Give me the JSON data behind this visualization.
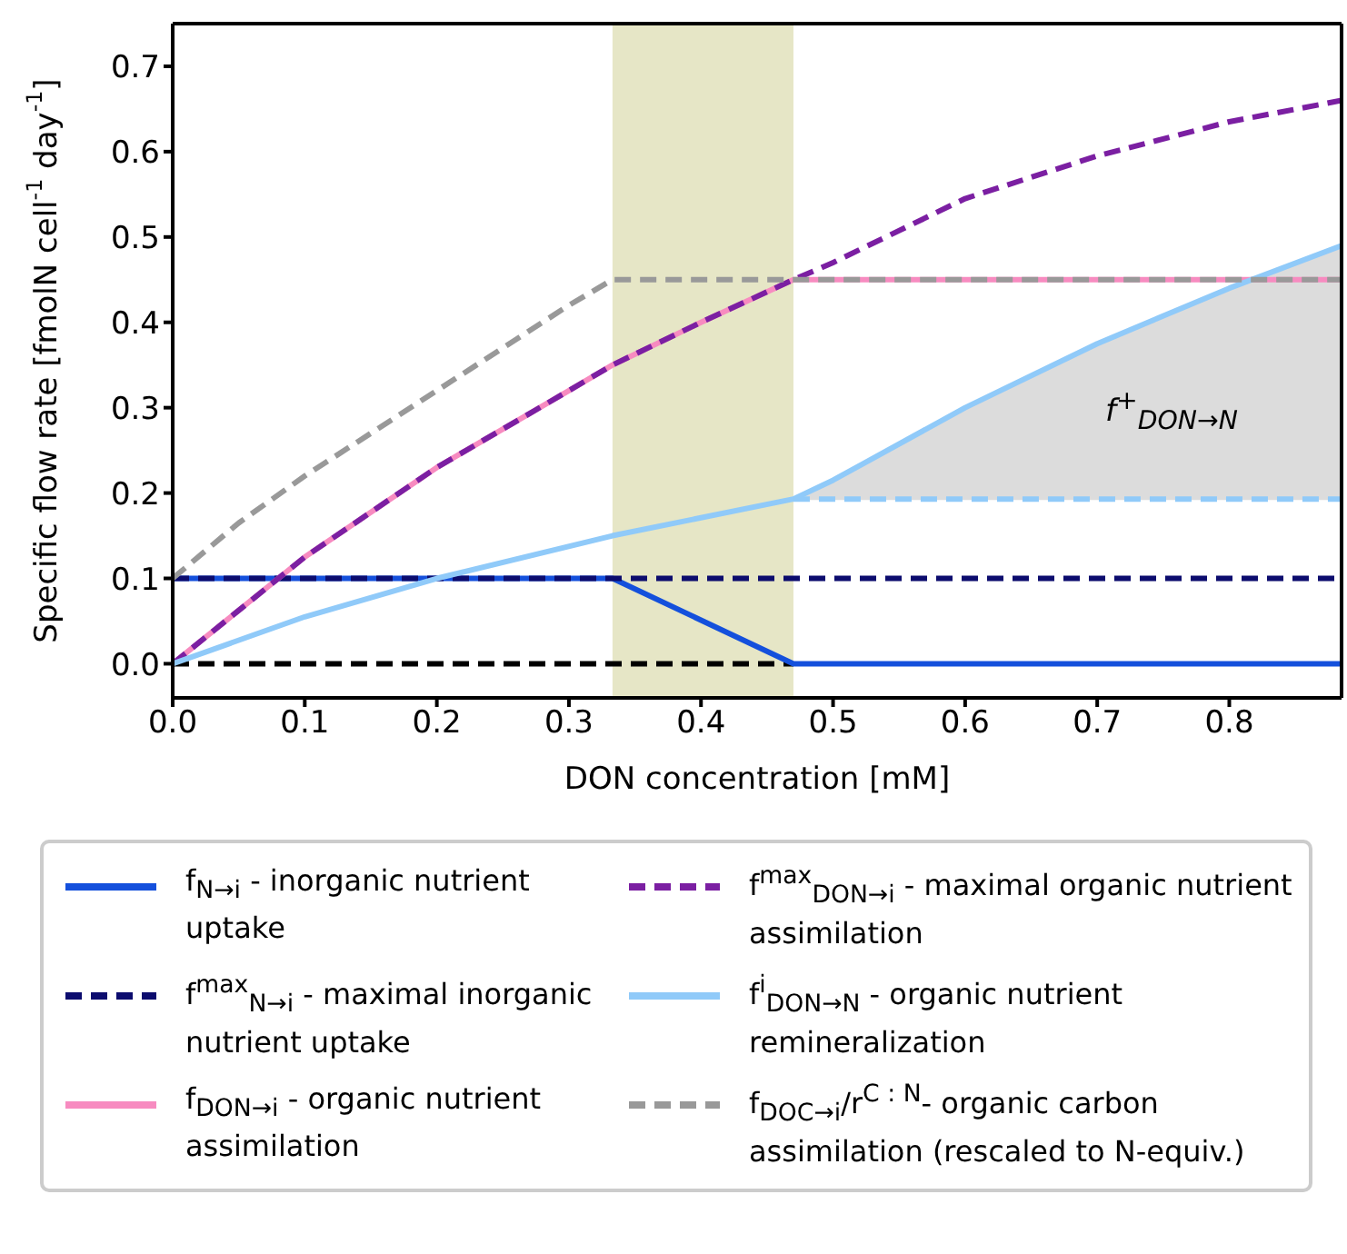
{
  "chart_data": {
    "type": "line",
    "xlabel": "DON concentration [mM]",
    "ylabel": "Specific flow rate [fmolN cell$^{-1}$ day$^{-1}$]",
    "xlim": [
      0,
      0.885
    ],
    "ylim": [
      -0.04,
      0.75
    ],
    "xticks": [
      {
        "value": 0,
        "label": "0.0"
      },
      {
        "value": 0.1,
        "label": "0.1"
      },
      {
        "value": 0.2,
        "label": "0.2"
      },
      {
        "value": 0.3,
        "label": "0.3"
      },
      {
        "value": 0.4,
        "label": "0.4"
      },
      {
        "value": 0.5,
        "label": "0.5"
      },
      {
        "value": 0.6,
        "label": "0.6"
      },
      {
        "value": 0.7,
        "label": "0.7"
      },
      {
        "value": 0.8,
        "label": "0.8"
      }
    ],
    "yticks": [
      {
        "value": 0,
        "label": "0.0"
      },
      {
        "value": 0.1,
        "label": "0.1"
      },
      {
        "value": 0.2,
        "label": "0.2"
      },
      {
        "value": 0.3,
        "label": "0.3"
      },
      {
        "value": 0.4,
        "label": "0.4"
      },
      {
        "value": 0.5,
        "label": "0.5"
      },
      {
        "value": 0.6,
        "label": "0.6"
      },
      {
        "value": 0.7,
        "label": "0.7"
      }
    ],
    "grid": false,
    "legend": "bottom",
    "marker": "none",
    "bands": [
      {
        "axis": "x",
        "from": 0.333,
        "to": 0.47,
        "color": "#e6e6c6"
      }
    ],
    "annotations": [
      "f$^{+}$$_{DON→N}$"
    ],
    "series": [
      {
        "color": "#000000",
        "line_style": "dashed",
        "x": [
          0,
          0.47
        ],
        "values": [
          0,
          0
        ]
      },
      {
        "name": "f$_{N→i}$ - inorganic nutrient uptake",
        "color": "#1450dc",
        "line_style": "solid",
        "x": [
          0,
          0.333,
          0.47,
          0.885
        ],
        "values": [
          0.1,
          0.1,
          0,
          0
        ]
      },
      {
        "name": "f$^{max}$$_{N→i}$ - maximal inorganic nutrient uptake",
        "color": "#0c0c6e",
        "line_style": "dashed",
        "x": [
          0,
          0.885
        ],
        "values": [
          0.1,
          0.1
        ]
      },
      {
        "name": "f$_{DON→i}$ - organic nutrient assimilation",
        "color": "#f78bc0",
        "line_style": "solid",
        "x": [
          0,
          0.1,
          0.2,
          0.3,
          0.333,
          0.4,
          0.47,
          0.885
        ],
        "values": [
          0,
          0.125,
          0.23,
          0.32,
          0.35,
          0.4,
          0.45,
          0.45
        ]
      },
      {
        "name": "f$^{max}$$_{DON→i}$ - maximal organic nutrient assimilation",
        "color": "#7b1fa2",
        "line_style": "dashed",
        "x": [
          0,
          0.1,
          0.2,
          0.3,
          0.333,
          0.4,
          0.47,
          0.5,
          0.6,
          0.7,
          0.8,
          0.885
        ],
        "values": [
          0,
          0.125,
          0.23,
          0.32,
          0.35,
          0.4,
          0.45,
          0.47,
          0.545,
          0.595,
          0.635,
          0.66
        ]
      },
      {
        "name": "f$^{i}$$_{DON→N}$ - organic nutrient remineralization",
        "color": "#90caf9",
        "line_style": "solid",
        "x": [
          0,
          0.1,
          0.2,
          0.333,
          0.47,
          0.5,
          0.6,
          0.7,
          0.8,
          0.885
        ],
        "values": [
          0,
          0.055,
          0.1,
          0.15,
          0.193,
          0.215,
          0.3,
          0.375,
          0.44,
          0.49
        ]
      },
      {
        "color": "#90caf9",
        "line_style": "dashed",
        "x": [
          0.47,
          0.5,
          0.6,
          0.7,
          0.8,
          0.885
        ],
        "values": [
          0.193,
          0.193,
          0.193,
          0.193,
          0.193,
          0.193
        ],
        "lower": [
          0.193,
          0.193,
          0.193,
          0.193,
          0.193,
          0.193
        ],
        "upper": [
          0.193,
          0.215,
          0.3,
          0.375,
          0.44,
          0.49
        ]
      },
      {
        "name": "f$_{DOC→i}$/r$^{C : N}$- organic carbon assimilation (rescaled to N-equiv.)",
        "color": "#999999",
        "line_style": "dashed",
        "x": [
          0,
          0.05,
          0.1,
          0.15,
          0.2,
          0.25,
          0.3,
          0.333,
          0.885
        ],
        "values": [
          0.1,
          0.165,
          0.22,
          0.27,
          0.32,
          0.37,
          0.42,
          0.45,
          0.45
        ]
      }
    ]
  }
}
